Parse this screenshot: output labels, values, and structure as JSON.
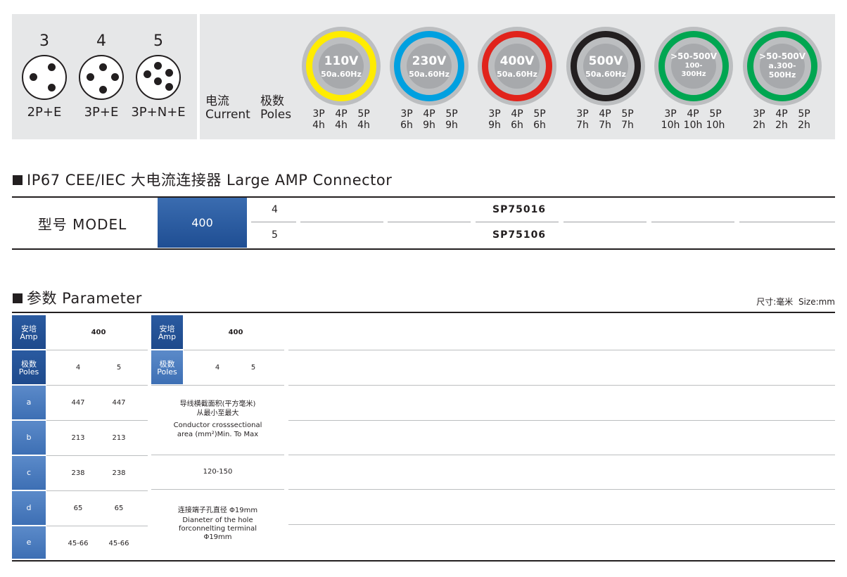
{
  "pins": [
    {
      "number": "3",
      "label": "2P+E"
    },
    {
      "number": "4",
      "label": "3P+E"
    },
    {
      "number": "5",
      "label": "3P+N+E"
    }
  ],
  "current_label": {
    "cn": "电流",
    "en": "Current"
  },
  "poles_label": {
    "cn": "极数",
    "en": "Poles"
  },
  "voltages": [
    {
      "main": "110V",
      "sub": "50a.60Hz",
      "color": "#ffec00",
      "poles": [
        "3P",
        "4P",
        "5P"
      ],
      "hours": [
        "4h",
        "4h",
        "4h"
      ]
    },
    {
      "main": "230V",
      "sub": "50a.60Hz",
      "color": "#00a0e0",
      "poles": [
        "3P",
        "4P",
        "5P"
      ],
      "hours": [
        "6h",
        "9h",
        "9h"
      ]
    },
    {
      "main": "400V",
      "sub": "50a.60Hz",
      "color": "#e1231b",
      "poles": [
        "3P",
        "4P",
        "5P"
      ],
      "hours": [
        "9h",
        "6h",
        "6h"
      ]
    },
    {
      "main": "500V",
      "sub": "50a.60Hz",
      "color": "#231f20",
      "poles": [
        "3P",
        "4P",
        "5P"
      ],
      "hours": [
        "7h",
        "7h",
        "7h"
      ]
    },
    {
      "main": ">50-500V",
      "sub": "100-",
      "sub2": "300Hz",
      "color": "#00a651",
      "poles": [
        "3P",
        "4P",
        "5P"
      ],
      "hours": [
        "10h",
        "10h",
        "10h"
      ]
    },
    {
      "main": ">50-500V",
      "sub": "a.300-",
      "sub2": "500Hz",
      "color": "#00a651",
      "poles": [
        "3P",
        "4P",
        "5P"
      ],
      "hours": [
        "2h",
        "2h",
        "2h"
      ]
    }
  ],
  "section1_title": "IP67 CEE/IEC 大电流连接器 Large AMP Connector",
  "model": {
    "label": "型号 MODEL",
    "amp": "400",
    "rows": [
      {
        "poles": "4",
        "code": "SP75016"
      },
      {
        "poles": "5",
        "code": "SP75106"
      }
    ]
  },
  "section2_title": "参数 Parameter",
  "size_note": "尺寸:毫米  Size:mm",
  "params": {
    "amp_cn": "安培",
    "amp_en": "Amp",
    "amp_value": "400",
    "poles_cn": "极数",
    "poles_en": "Poles",
    "poles_values": [
      "4",
      "5"
    ],
    "rows": [
      {
        "label": "a",
        "values": [
          "447",
          "447"
        ]
      },
      {
        "label": "b",
        "values": [
          "213",
          "213"
        ]
      },
      {
        "label": "c",
        "values": [
          "238",
          "238"
        ]
      },
      {
        "label": "d",
        "values": [
          "65",
          "65"
        ]
      },
      {
        "label": "e",
        "values": [
          "45-66",
          "45-66"
        ]
      }
    ],
    "conductor_cn": "导线横截面积(平方毫米)",
    "conductor_cn2": "从最小至最大",
    "conductor_en1": "Conductor crosssectional",
    "conductor_en2": "area (mm²)Min. To Max",
    "conductor_value": "120-150",
    "hole_cn": "连接端子孔直径 Φ19mm",
    "hole_en1": "Dianeter of the hole",
    "hole_en2": "forconnelting terminal",
    "hole_en3": "Φ19mm"
  }
}
